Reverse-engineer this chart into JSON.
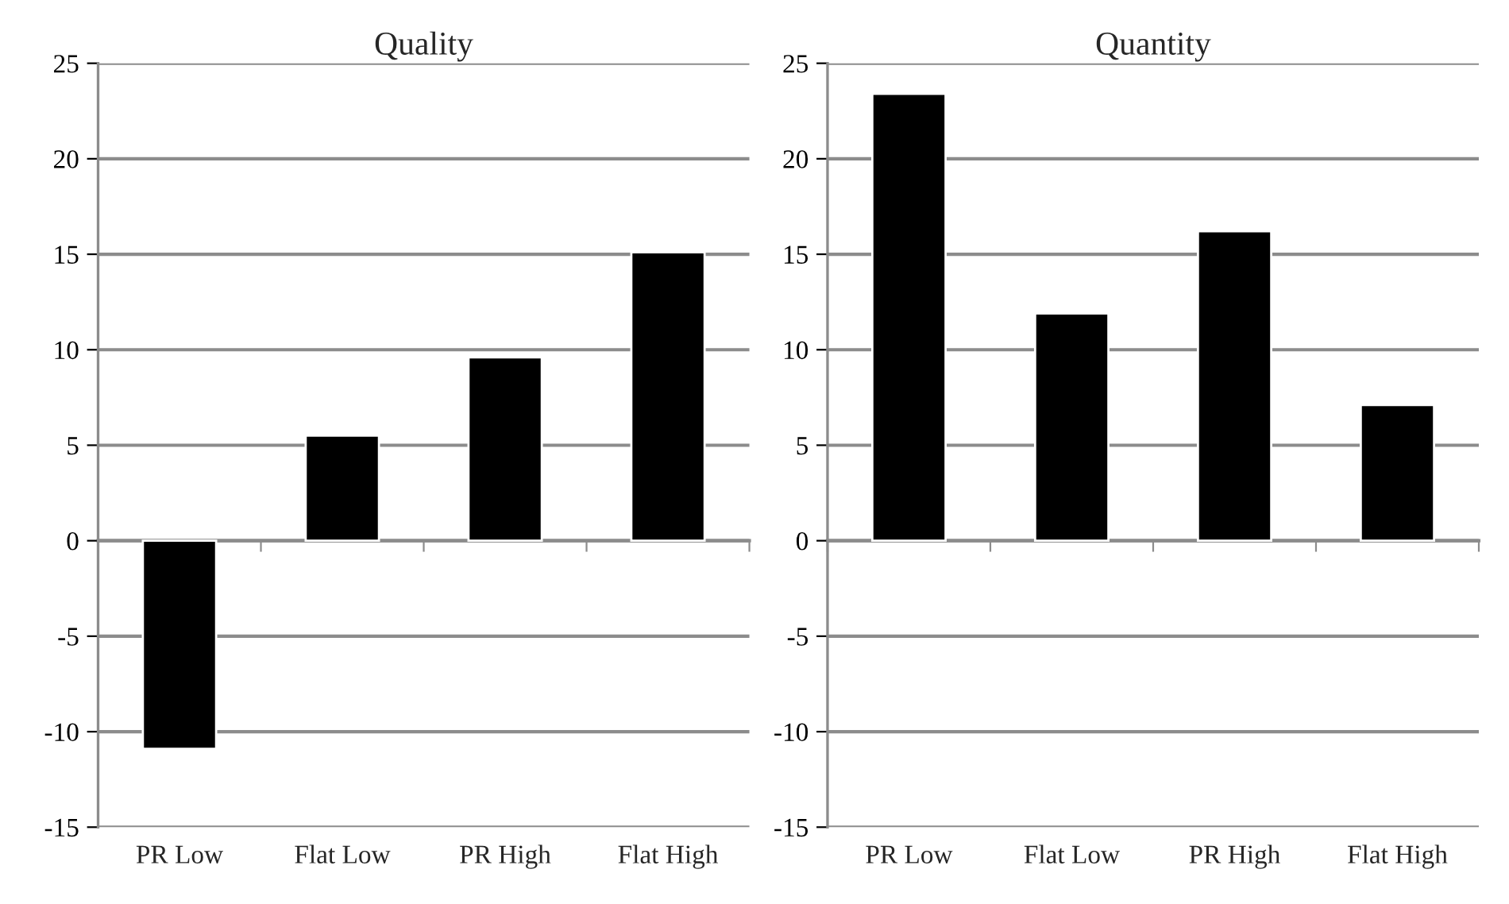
{
  "chart_data": [
    {
      "type": "bar",
      "title": "Quality",
      "categories": [
        "PR Low",
        "Flat Low",
        "PR High",
        "Flat High"
      ],
      "values": [
        -10.9,
        5.5,
        9.6,
        15.1
      ],
      "color": "#000000",
      "ylim": [
        -15,
        25
      ],
      "yticks": [
        -15,
        -10,
        -5,
        0,
        5,
        10,
        15,
        20,
        25
      ],
      "grid": "y"
    },
    {
      "type": "bar",
      "title": "Quantity",
      "categories": [
        "PR Low",
        "Flat Low",
        "PR High",
        "Flat High"
      ],
      "values": [
        23.4,
        11.9,
        16.2,
        7.1
      ],
      "color": "#000000",
      "ylim": [
        -15,
        25
      ],
      "yticks": [
        -15,
        -10,
        -5,
        0,
        5,
        10,
        15,
        20,
        25
      ],
      "grid": "y"
    }
  ]
}
